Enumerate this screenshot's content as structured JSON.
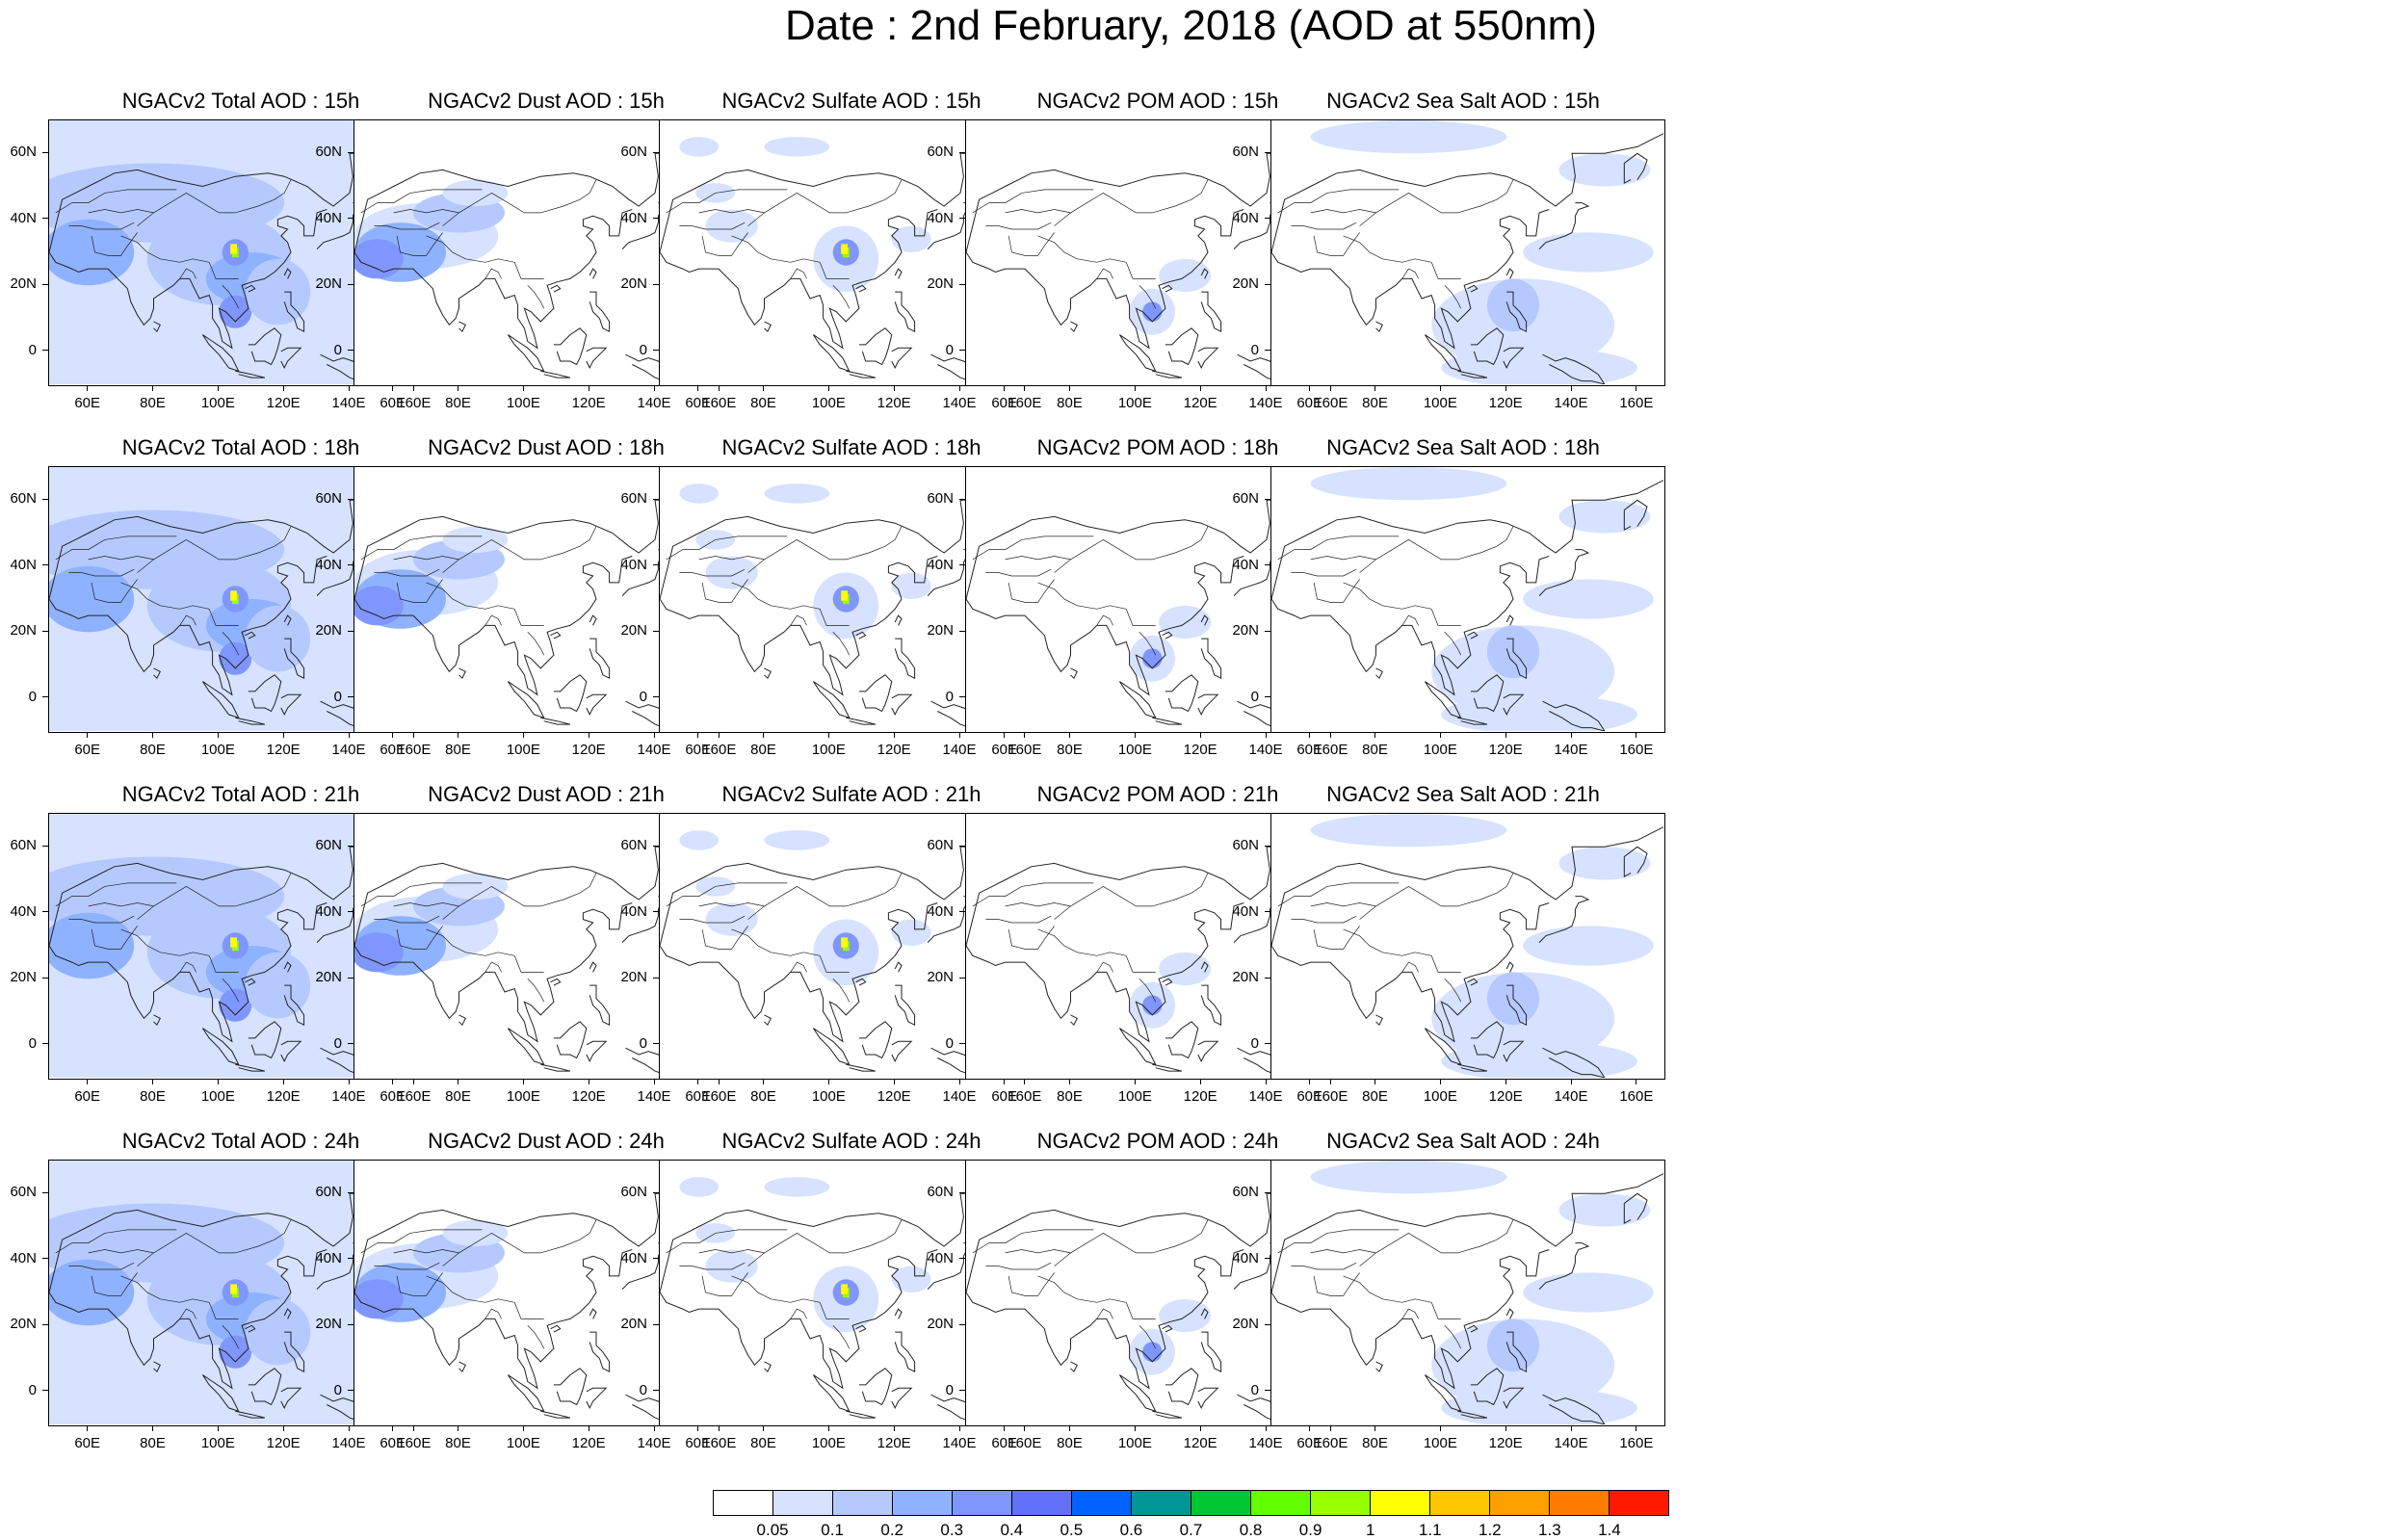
{
  "main_title": "Date : 2nd February, 2018 (AOD at 550nm)",
  "x_ticks": [
    "60E",
    "80E",
    "100E",
    "120E",
    "140E",
    "160E"
  ],
  "y_ticks": [
    "60N",
    "40N",
    "20N",
    "0"
  ],
  "lon_range": [
    48,
    168
  ],
  "lat_range": [
    -10,
    70
  ],
  "x_tick_values": [
    60,
    80,
    100,
    120,
    140,
    160
  ],
  "y_tick_values": [
    60,
    40,
    20,
    0
  ],
  "rows": [
    {
      "hour": "15h",
      "titles": [
        "NGACv2 Total AOD : 15h",
        "NGACv2 Dust AOD : 15h",
        "NGACv2 Sulfate AOD : 15h",
        "NGACv2 POM AOD : 15h",
        "NGACv2 Sea Salt AOD : 15h"
      ]
    },
    {
      "hour": "18h",
      "titles": [
        "NGACv2 Total AOD : 18h",
        "NGACv2 Dust AOD : 18h",
        "NGACv2 Sulfate AOD : 18h",
        "NGACv2 POM AOD : 18h",
        "NGACv2 Sea Salt AOD : 18h"
      ]
    },
    {
      "hour": "21h",
      "titles": [
        "NGACv2 Total AOD : 21h",
        "NGACv2 Dust AOD : 21h",
        "NGACv2 Sulfate AOD : 21h",
        "NGACv2 POM AOD : 21h",
        "NGACv2 Sea Salt AOD : 21h"
      ]
    },
    {
      "hour": "24h",
      "titles": [
        "NGACv2 Total AOD : 24h",
        "NGACv2 Dust AOD : 24h",
        "NGACv2 Sulfate AOD : 24h",
        "NGACv2 POM AOD : 24h",
        "NGACv2 Sea Salt  AOD : 24h"
      ]
    }
  ],
  "colorbar": {
    "labels": [
      "0.05",
      "0.1",
      "0.2",
      "0.3",
      "0.4",
      "0.5",
      "0.6",
      "0.7",
      "0.8",
      "0.9",
      "1",
      "1.1",
      "1.2",
      "1.3",
      "1.4"
    ],
    "colors": [
      "#ffffff",
      "#d6e2ff",
      "#b5c9ff",
      "#8eb2ff",
      "#7f96ff",
      "#6370f8",
      "#0063ff",
      "#009696",
      "#00c633",
      "#63ff00",
      "#96ff00",
      "#ffff00",
      "#ffc600",
      "#ffa000",
      "#ff7c00",
      "#ff1900"
    ]
  }
}
